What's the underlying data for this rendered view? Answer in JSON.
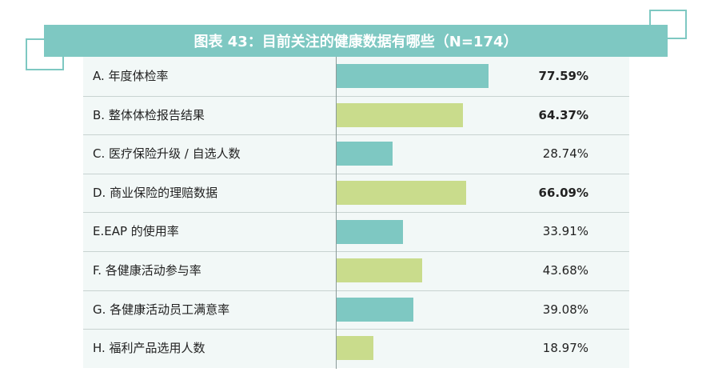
{
  "title": "图表 43：目前关注的健康数据有哪些（N=174）",
  "colors": {
    "teal": "#7ec8c2",
    "green": "#c9dc8c"
  },
  "chart_data": {
    "type": "bar",
    "orientation": "horizontal",
    "title": "图表 43：目前关注的健康数据有哪些（N=174）",
    "unit": "%",
    "xlim": [
      0,
      100
    ],
    "categories": [
      "A. 年度体检率",
      "B. 整体体检报告结果",
      "C. 医疗保险升级 / 自选人数",
      "D. 商业保险的理赔数据",
      "E.EAP 的使用率",
      "F. 各健康活动参与率",
      "G. 各健康活动员工满意率",
      "H. 福利产品选用人数"
    ],
    "values": [
      77.59,
      64.37,
      28.74,
      66.09,
      33.91,
      43.68,
      39.08,
      18.97
    ],
    "value_labels": [
      "77.59%",
      "64.37%",
      "28.74%",
      "66.09%",
      "33.91%",
      "43.68%",
      "39.08%",
      "18.97%"
    ],
    "bold_values": [
      true,
      true,
      false,
      true,
      false,
      false,
      false,
      false
    ],
    "bar_colors": [
      "teal",
      "green",
      "teal",
      "green",
      "teal",
      "green",
      "teal",
      "green"
    ]
  }
}
